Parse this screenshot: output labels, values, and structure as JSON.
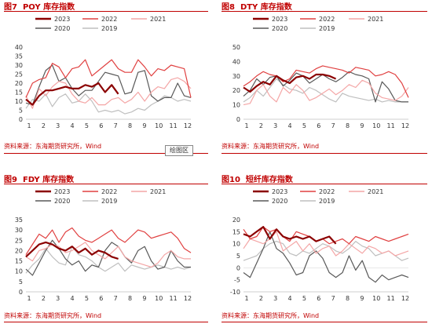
{
  "colors": {
    "2023": "#8b0000",
    "2022": "#e04040",
    "2021": "#f4a6a6",
    "2020": "#595959",
    "2019": "#bfbfbf",
    "accent": "#c00000"
  },
  "legend": [
    "2023",
    "2022",
    "2021",
    "2020",
    "2019"
  ],
  "source_text": "资料来源：东海期货研究所，Wind",
  "float_button": "绘图区",
  "charts": [
    {
      "title_num": "图7",
      "title_text": "POY 库存指数",
      "chart_data": {
        "type": "line",
        "ylim": [
          0,
          40
        ],
        "yticks": [
          0,
          5,
          10,
          15,
          20,
          25,
          30,
          35,
          40
        ],
        "xticks": [
          "1",
          "2",
          "3",
          "4",
          "5",
          "6",
          "7",
          "8",
          "9",
          "10",
          "11",
          "12"
        ],
        "series": [
          {
            "name": "2019",
            "values": [
              6,
              11,
              10,
              14,
              7,
              12,
              14,
              9,
              10,
              14,
              10,
              4,
              5,
              4,
              5,
              3,
              4,
              6,
              5,
              8,
              10,
              13,
              12,
              10,
              11,
              10
            ]
          },
          {
            "name": "2020",
            "values": [
              9,
              8,
              18,
              27,
              30,
              21,
              23,
              17,
              13,
              16,
              16,
              21,
              26,
              25,
              24,
              14,
              15,
              26,
              27,
              13,
              10,
              12,
              12,
              20,
              13,
              12
            ]
          },
          {
            "name": "2021",
            "values": [
              13,
              6,
              17,
              13,
              18,
              21,
              20,
              14,
              10,
              9,
              12,
              8,
              8,
              11,
              12,
              9,
              11,
              15,
              10,
              15,
              18,
              17,
              22,
              23,
              21,
              17
            ]
          },
          {
            "name": "2022",
            "values": [
              12,
              20,
              22,
              23,
              31,
              29,
              23,
              28,
              29,
              33,
              24,
              27,
              30,
              33,
              28,
              26,
              26,
              33,
              29,
              24,
              28,
              27,
              30,
              29,
              28,
              12
            ]
          },
          {
            "name": "2023",
            "values": [
              11,
              8,
              13,
              16,
              16,
              17,
              18,
              17,
              17,
              19,
              18,
              20,
              15,
              19,
              14
            ]
          }
        ]
      }
    },
    {
      "title_num": "图8",
      "title_text": "DTY 库存指数",
      "chart_data": {
        "type": "line",
        "ylim": [
          0,
          50
        ],
        "yticks": [
          0,
          10,
          20,
          30,
          40,
          50
        ],
        "xticks": [
          "1",
          "2",
          "3",
          "4",
          "5",
          "6",
          "7",
          "8",
          "9",
          "10",
          "11",
          "12"
        ],
        "series": [
          {
            "name": "2019",
            "values": [
              12,
              15,
              20,
              16,
              22,
              28,
              24,
              21,
              20,
              18,
              22,
              20,
              17,
              14,
              12,
              18,
              16,
              15,
              14,
              13,
              14,
              12,
              13,
              12,
              12,
              12
            ]
          },
          {
            "name": "2020",
            "values": [
              16,
              20,
              28,
              24,
              29,
              30,
              23,
              27,
              32,
              30,
              25,
              28,
              31,
              28,
              26,
              29,
              33,
              31,
              30,
              28,
              12,
              26,
              21,
              13,
              12,
              12
            ]
          },
          {
            "name": "2021",
            "values": [
              10,
              11,
              20,
              24,
              16,
              12,
              22,
              18,
              24,
              20,
              13,
              15,
              18,
              21,
              17,
              20,
              24,
              22,
              27,
              25,
              18,
              15,
              14,
              13,
              16,
              22
            ]
          },
          {
            "name": "2022",
            "values": [
              23,
              26,
              30,
              33,
              31,
              30,
              26,
              28,
              34,
              33,
              32,
              35,
              37,
              36,
              35,
              34,
              32,
              36,
              35,
              34,
              30,
              31,
              33,
              31,
              25,
              15
            ]
          },
          {
            "name": "2023",
            "values": [
              22,
              19,
              23,
              26,
              24,
              30,
              27,
              25,
              29,
              30,
              28,
              31,
              31,
              30,
              28
            ]
          }
        ]
      }
    },
    {
      "title_num": "图9",
      "title_text": "FDY 库存指数",
      "chart_data": {
        "type": "line",
        "ylim": [
          0,
          35
        ],
        "yticks": [
          0,
          5,
          10,
          15,
          20,
          25,
          30,
          35
        ],
        "xticks": [
          "1",
          "2",
          "3",
          "4",
          "5",
          "6",
          "7",
          "8",
          "9",
          "10",
          "11",
          "12"
        ],
        "series": [
          {
            "name": "2019",
            "values": [
              9,
              13,
              16,
              21,
              17,
              14,
              13,
              22,
              18,
              17,
              15,
              12,
              10,
              12,
              14,
              10,
              13,
              12,
              11,
              12,
              13,
              12,
              11,
              12,
              11,
              12
            ]
          },
          {
            "name": "2020",
            "values": [
              11,
              8,
              14,
              20,
              25,
              21,
              16,
              13,
              15,
              10,
              13,
              12,
              20,
              24,
              22,
              17,
              14,
              20,
              22,
              15,
              11,
              12,
              20,
              15,
              12,
              12
            ]
          },
          {
            "name": "2021",
            "values": [
              17,
              15,
              20,
              21,
              23,
              22,
              19,
              20,
              22,
              24,
              20,
              18,
              16,
              19,
              22,
              17,
              15,
              14,
              13,
              12,
              14,
              18,
              20,
              17,
              16,
              16
            ]
          },
          {
            "name": "2022",
            "values": [
              18,
              23,
              28,
              26,
              30,
              24,
              29,
              31,
              27,
              25,
              24,
              26,
              28,
              30,
              26,
              24,
              27,
              30,
              29,
              26,
              27,
              28,
              29,
              26,
              21,
              19
            ]
          },
          {
            "name": "2023",
            "values": [
              17,
              20,
              23,
              24,
              23,
              21,
              20,
              22,
              19,
              21,
              18,
              20,
              19,
              17,
              16
            ]
          }
        ]
      }
    },
    {
      "title_num": "图10",
      "title_text": "短纤库存指数",
      "chart_data": {
        "type": "line",
        "ylim": [
          -10,
          20
        ],
        "yticks": [
          -10,
          -5,
          0,
          5,
          10,
          15,
          20
        ],
        "xticks": [
          "1",
          "2",
          "3",
          "4",
          "5",
          "6",
          "7",
          "8",
          "9",
          "10",
          "11",
          "12"
        ],
        "series": [
          {
            "name": "2019",
            "values": [
              3,
              4,
              5,
              8,
              10,
              11,
              10,
              6,
              5,
              7,
              6,
              8,
              10,
              9,
              7,
              6,
              8,
              11,
              9,
              8,
              5,
              6,
              7,
              5,
              3,
              4
            ]
          },
          {
            "name": "2020",
            "values": [
              -2,
              -4,
              2,
              8,
              15,
              8,
              6,
              2,
              -3,
              -2,
              5,
              7,
              4,
              -2,
              -4,
              -2,
              5,
              -1,
              3,
              -4,
              -6,
              -3,
              -5,
              -4,
              -3,
              -4
            ]
          },
          {
            "name": "2021",
            "values": [
              8,
              12,
              11,
              10,
              12,
              15,
              7,
              9,
              11,
              7,
              10,
              6,
              8,
              9,
              5,
              7,
              10,
              8,
              6,
              9,
              8,
              6,
              7,
              5,
              6,
              7
            ]
          },
          {
            "name": "2022",
            "values": [
              16,
              12,
              13,
              17,
              15,
              16,
              13,
              11,
              15,
              14,
              13,
              11,
              12,
              10,
              11,
              12,
              10,
              13,
              12,
              11,
              13,
              12,
              11,
              12,
              13,
              14
            ]
          },
          {
            "name": "2023",
            "values": [
              14,
              13,
              15,
              17,
              12,
              16,
              13,
              12,
              13,
              12,
              13,
              11,
              12,
              13,
              10
            ]
          }
        ]
      }
    }
  ]
}
